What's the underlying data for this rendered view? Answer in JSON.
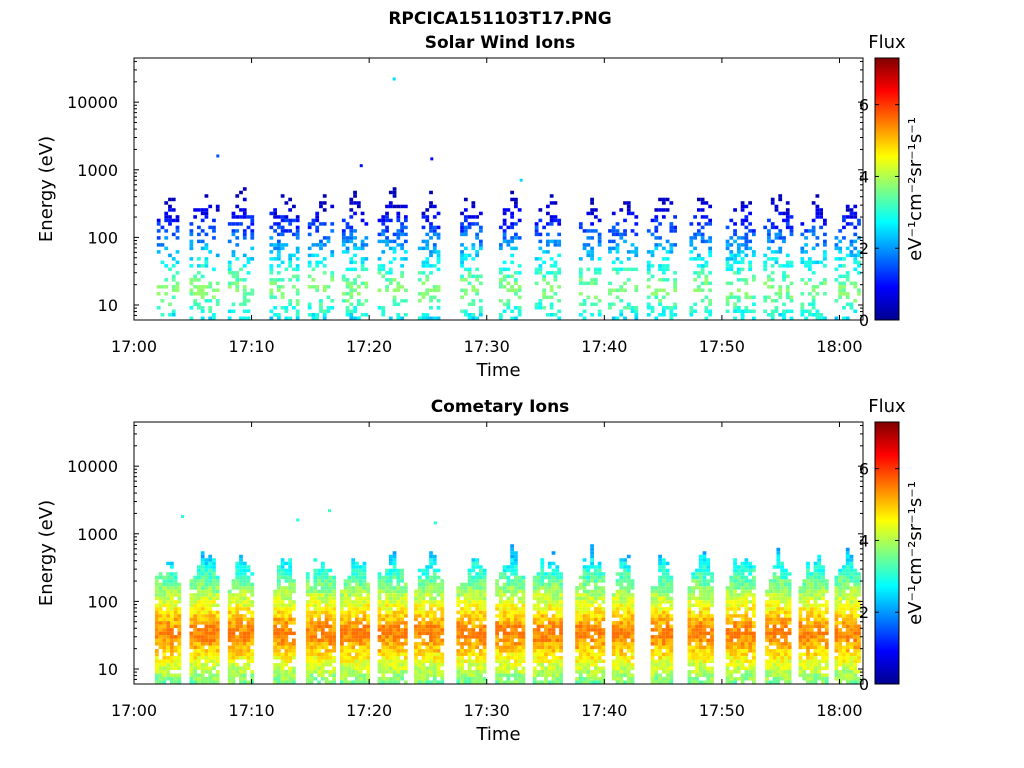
{
  "figure": {
    "title": "RPCICA151103T17.PNG"
  },
  "colors": {
    "colormap": [
      "#00008f",
      "#0000ff",
      "#0080ff",
      "#00ffff",
      "#80ff80",
      "#ffff00",
      "#ff8000",
      "#ff0000",
      "#800000"
    ],
    "axes": "#000000",
    "background": "#ffffff"
  },
  "chart_data": [
    {
      "type": "heatmap",
      "title": "Solar Wind Ions",
      "xlabel": "Time",
      "ylabel": "Energy (eV)",
      "yscale": "log",
      "xlim": [
        "17:00",
        "18:02"
      ],
      "ylim": [
        6,
        45000
      ],
      "xticks": [
        "17:00",
        "17:10",
        "17:20",
        "17:30",
        "17:40",
        "17:50",
        "18:00"
      ],
      "yticks": [
        "10",
        "100",
        "1000",
        "10000"
      ],
      "colorbar": {
        "title": "Flux",
        "label": "eV⁻¹cm⁻²sr⁻¹s⁻¹",
        "range": [
          0,
          7.3
        ],
        "ticks": [
          "0",
          "2",
          "4",
          "6"
        ]
      },
      "scan_times_min": [
        2.9,
        6.0,
        9.1,
        12.8,
        15.9,
        18.8,
        22.0,
        25.1,
        28.7,
        32.0,
        35.2,
        38.8,
        41.6,
        44.9,
        48.2,
        51.6,
        54.8,
        57.8,
        60.7
      ],
      "energy_range_eV": [
        6,
        700
      ],
      "flux_range": [
        0.3,
        3.8
      ],
      "outliers": [
        {
          "time": "17:22.0",
          "energy_eV": 22000,
          "flux": 2.5
        },
        {
          "time": "17:07.0",
          "energy_eV": 1600,
          "flux": 1.5
        },
        {
          "time": "17:19.2",
          "energy_eV": 1150,
          "flux": 1.0
        },
        {
          "time": "17:25.2",
          "energy_eV": 1450,
          "flux": 1.0
        },
        {
          "time": "17:32.8",
          "energy_eV": 700,
          "flux": 2.5
        }
      ]
    },
    {
      "type": "heatmap",
      "title": "Cometary Ions",
      "xlabel": "Time",
      "ylabel": "Energy (eV)",
      "yscale": "log",
      "xlim": [
        "17:00",
        "18:02"
      ],
      "ylim": [
        6,
        45000
      ],
      "xticks": [
        "17:00",
        "17:10",
        "17:20",
        "17:30",
        "17:40",
        "17:50",
        "18:00"
      ],
      "yticks": [
        "10",
        "100",
        "1000",
        "10000"
      ],
      "colorbar": {
        "title": "Flux",
        "label": "eV⁻¹cm⁻²sr⁻¹s⁻¹",
        "range": [
          0,
          7.3
        ],
        "ticks": [
          "0",
          "2",
          "4",
          "6"
        ]
      },
      "scan_times_min": [
        2.9,
        6.0,
        9.1,
        12.8,
        15.9,
        18.8,
        22.0,
        25.1,
        28.7,
        32.0,
        35.2,
        38.8,
        41.6,
        44.9,
        48.2,
        51.6,
        54.8,
        57.8,
        60.7
      ],
      "energy_range_eV": [
        6,
        700
      ],
      "flux_range": [
        2.0,
        5.6
      ],
      "outliers": [
        {
          "time": "17:16.5",
          "energy_eV": 2200,
          "flux": 3.2
        },
        {
          "time": "17:04.0",
          "energy_eV": 1800,
          "flux": 3.0
        },
        {
          "time": "17:13.8",
          "energy_eV": 1600,
          "flux": 3.0
        },
        {
          "time": "17:25.5",
          "energy_eV": 1450,
          "flux": 3.0
        }
      ]
    }
  ]
}
